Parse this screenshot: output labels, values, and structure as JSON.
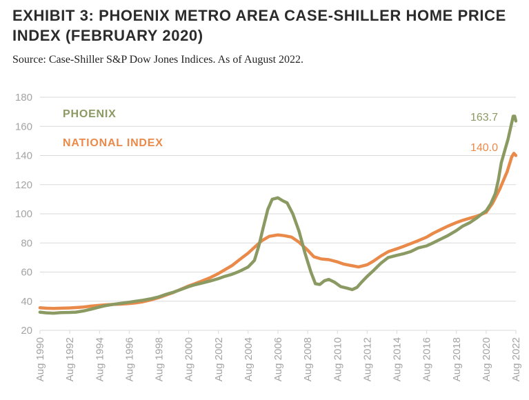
{
  "title": "EXHIBIT 3: PHOENIX METRO AREA CASE-SHILLER HOME PRICE INDEX (FEBRUARY 2020)",
  "subtitle": "Source: Case-Shiller S&P Dow Jones Indices. As of August 2022.",
  "colors": {
    "phoenix": "#8b9a62",
    "national": "#ea8a4a",
    "grid": "#d9d9d9",
    "axis": "#a3a3a3"
  },
  "chart_data": {
    "type": "line",
    "ylim": [
      20,
      180
    ],
    "yticks": [
      20,
      40,
      60,
      80,
      100,
      120,
      140,
      160,
      180
    ],
    "xlim": [
      1990.583,
      2022.583
    ],
    "xtick_labels": [
      "Aug 1990",
      "Aug 1992",
      "Aug 1994",
      "Aug 1996",
      "Aug 1998",
      "Aug 2000",
      "Aug 2002",
      "Aug 2004",
      "Aug 2006",
      "Aug 2008",
      "Aug 2010",
      "Aug 2012",
      "Aug 2014",
      "Aug 2016",
      "Aug 2018",
      "Aug 2020",
      "Aug 2022"
    ],
    "grid": true,
    "legend_position": "top-left",
    "series": [
      {
        "name": "PHOENIX",
        "color": "#8b9a62",
        "end_label": "163.7",
        "points": [
          [
            1990.58,
            32.5
          ],
          [
            1991.0,
            32.0
          ],
          [
            1991.5,
            31.8
          ],
          [
            1992.0,
            32.2
          ],
          [
            1992.58,
            32.3
          ],
          [
            1993.0,
            32.5
          ],
          [
            1993.5,
            33.3
          ],
          [
            1994.0,
            34.5
          ],
          [
            1994.58,
            36.0
          ],
          [
            1995.0,
            37.0
          ],
          [
            1995.5,
            37.8
          ],
          [
            1996.0,
            38.5
          ],
          [
            1996.58,
            39.3
          ],
          [
            1997.0,
            40.0
          ],
          [
            1997.5,
            40.7
          ],
          [
            1998.0,
            41.6
          ],
          [
            1998.58,
            43.0
          ],
          [
            1999.0,
            44.5
          ],
          [
            1999.5,
            46.0
          ],
          [
            2000.0,
            47.8
          ],
          [
            2000.58,
            50.0
          ],
          [
            2001.0,
            51.3
          ],
          [
            2001.5,
            52.5
          ],
          [
            2002.0,
            53.8
          ],
          [
            2002.58,
            55.5
          ],
          [
            2003.0,
            57.0
          ],
          [
            2003.5,
            58.5
          ],
          [
            2004.0,
            60.5
          ],
          [
            2004.58,
            63.5
          ],
          [
            2005.0,
            68.0
          ],
          [
            2005.3,
            78.0
          ],
          [
            2005.58,
            90.0
          ],
          [
            2005.9,
            103.0
          ],
          [
            2006.2,
            110.0
          ],
          [
            2006.58,
            111.0
          ],
          [
            2006.9,
            109.0
          ],
          [
            2007.2,
            107.5
          ],
          [
            2007.58,
            100.0
          ],
          [
            2008.0,
            88.0
          ],
          [
            2008.4,
            73.0
          ],
          [
            2008.8,
            60.0
          ],
          [
            2009.1,
            52.0
          ],
          [
            2009.4,
            51.5
          ],
          [
            2009.7,
            54.0
          ],
          [
            2010.0,
            55.0
          ],
          [
            2010.4,
            53.0
          ],
          [
            2010.8,
            50.0
          ],
          [
            2011.2,
            49.0
          ],
          [
            2011.58,
            48.0
          ],
          [
            2011.9,
            49.5
          ],
          [
            2012.2,
            53.0
          ],
          [
            2012.58,
            57.0
          ],
          [
            2013.0,
            61.0
          ],
          [
            2013.5,
            66.0
          ],
          [
            2014.0,
            70.0
          ],
          [
            2014.58,
            71.5
          ],
          [
            2015.0,
            72.5
          ],
          [
            2015.5,
            74.0
          ],
          [
            2016.0,
            76.5
          ],
          [
            2016.58,
            78.0
          ],
          [
            2017.0,
            80.0
          ],
          [
            2017.5,
            82.5
          ],
          [
            2018.0,
            85.0
          ],
          [
            2018.58,
            88.5
          ],
          [
            2019.0,
            91.5
          ],
          [
            2019.5,
            94.0
          ],
          [
            2020.0,
            97.5
          ],
          [
            2020.3,
            100.0
          ],
          [
            2020.58,
            102.0
          ],
          [
            2020.9,
            107.0
          ],
          [
            2021.2,
            114.0
          ],
          [
            2021.4,
            123.0
          ],
          [
            2021.6,
            135.0
          ],
          [
            2021.85,
            144.0
          ],
          [
            2022.05,
            151.0
          ],
          [
            2022.25,
            160.0
          ],
          [
            2022.4,
            167.0
          ],
          [
            2022.5,
            167.0
          ],
          [
            2022.58,
            163.7
          ]
        ]
      },
      {
        "name": "NATIONAL INDEX",
        "color": "#ea8a4a",
        "end_label": "140.0",
        "points": [
          [
            1990.58,
            35.5
          ],
          [
            1991.0,
            35.2
          ],
          [
            1991.5,
            35.0
          ],
          [
            1992.0,
            35.2
          ],
          [
            1992.58,
            35.4
          ],
          [
            1993.0,
            35.6
          ],
          [
            1993.5,
            36.0
          ],
          [
            1994.0,
            36.6
          ],
          [
            1994.58,
            37.2
          ],
          [
            1995.0,
            37.5
          ],
          [
            1995.5,
            37.8
          ],
          [
            1996.0,
            38.0
          ],
          [
            1996.58,
            38.4
          ],
          [
            1997.0,
            38.8
          ],
          [
            1997.5,
            39.6
          ],
          [
            1998.0,
            40.8
          ],
          [
            1998.58,
            42.5
          ],
          [
            1999.0,
            44.0
          ],
          [
            1999.5,
            45.8
          ],
          [
            2000.0,
            48.0
          ],
          [
            2000.58,
            50.5
          ],
          [
            2001.0,
            52.0
          ],
          [
            2001.5,
            54.0
          ],
          [
            2002.0,
            56.0
          ],
          [
            2002.58,
            59.0
          ],
          [
            2003.0,
            61.5
          ],
          [
            2003.5,
            64.5
          ],
          [
            2004.0,
            68.5
          ],
          [
            2004.58,
            73.0
          ],
          [
            2005.0,
            77.0
          ],
          [
            2005.5,
            81.5
          ],
          [
            2006.0,
            84.5
          ],
          [
            2006.58,
            85.5
          ],
          [
            2007.0,
            85.0
          ],
          [
            2007.5,
            84.0
          ],
          [
            2008.0,
            80.5
          ],
          [
            2008.58,
            75.0
          ],
          [
            2009.0,
            70.5
          ],
          [
            2009.5,
            69.0
          ],
          [
            2010.0,
            68.5
          ],
          [
            2010.58,
            67.0
          ],
          [
            2011.0,
            65.5
          ],
          [
            2011.5,
            64.5
          ],
          [
            2012.0,
            63.5
          ],
          [
            2012.58,
            65.0
          ],
          [
            2013.0,
            67.5
          ],
          [
            2013.5,
            71.0
          ],
          [
            2014.0,
            74.0
          ],
          [
            2014.58,
            76.0
          ],
          [
            2015.0,
            77.5
          ],
          [
            2015.5,
            79.5
          ],
          [
            2016.0,
            81.5
          ],
          [
            2016.58,
            84.0
          ],
          [
            2017.0,
            86.5
          ],
          [
            2017.5,
            89.0
          ],
          [
            2018.0,
            91.5
          ],
          [
            2018.58,
            94.0
          ],
          [
            2019.0,
            95.5
          ],
          [
            2019.5,
            97.0
          ],
          [
            2020.0,
            98.5
          ],
          [
            2020.58,
            101.0
          ],
          [
            2021.0,
            107.0
          ],
          [
            2021.5,
            117.0
          ],
          [
            2022.0,
            129.0
          ],
          [
            2022.3,
            139.0
          ],
          [
            2022.45,
            141.5
          ],
          [
            2022.58,
            140.0
          ]
        ]
      }
    ]
  }
}
